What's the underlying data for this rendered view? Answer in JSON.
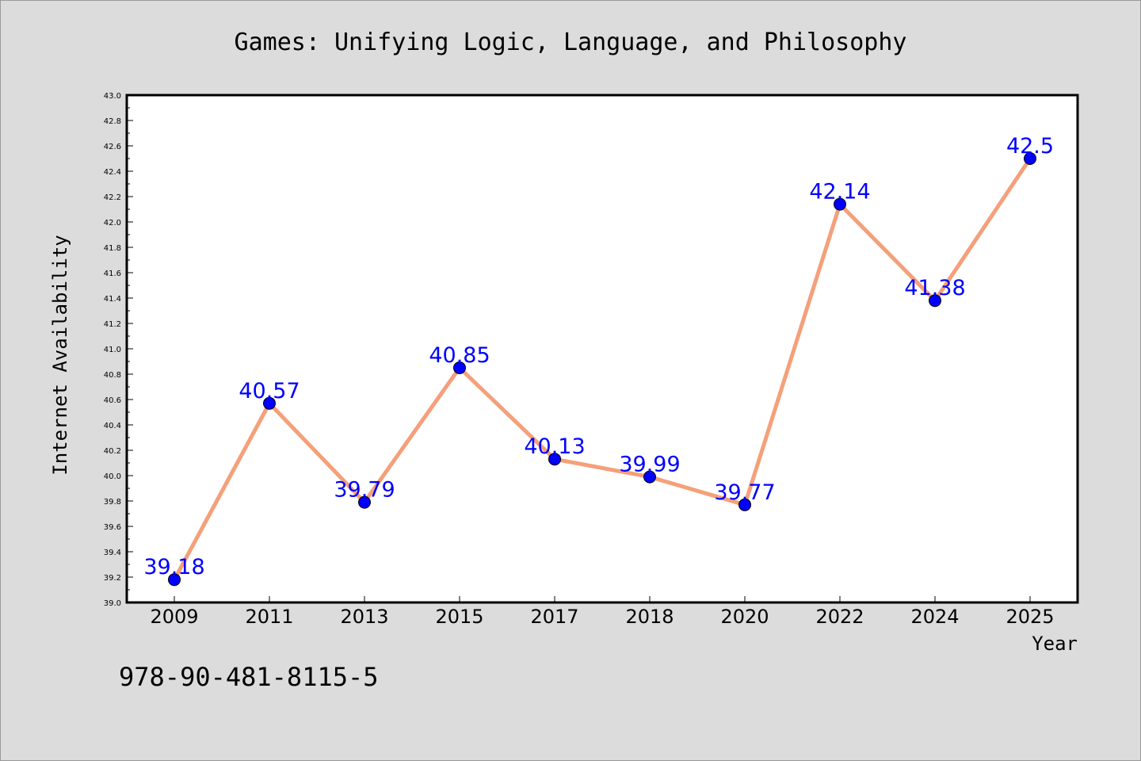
{
  "chart_data": {
    "type": "line",
    "title": "Games: Unifying Logic, Language, and Philosophy",
    "xlabel": "Year",
    "ylabel": "Internet Availability",
    "categories": [
      "2009",
      "2011",
      "2013",
      "2015",
      "2017",
      "2018",
      "2020",
      "2022",
      "2024",
      "2025"
    ],
    "values": [
      39.18,
      40.57,
      39.79,
      40.85,
      40.13,
      39.99,
      39.77,
      42.14,
      41.38,
      42.5
    ],
    "data_labels": [
      "39.18",
      "40.57",
      "39.79",
      "40.85",
      "40.13",
      "39.99",
      "39.77",
      "42.14",
      "41.38",
      "42.5"
    ],
    "ylim": [
      39.0,
      43.0
    ],
    "yticks": [
      "39.0",
      "39.2",
      "39.4",
      "39.6",
      "39.8",
      "40.0",
      "40.2",
      "40.4",
      "40.6",
      "40.8",
      "41.0",
      "41.2",
      "41.4",
      "41.6",
      "41.8",
      "42.0",
      "42.2",
      "42.4",
      "42.6",
      "42.8",
      "43.0"
    ],
    "grid": false,
    "line_color": "#f4a07a",
    "marker_color": "#0000ff",
    "label_color": "#0000ff"
  },
  "footer": {
    "isbn": "978-90-481-8115-5"
  }
}
